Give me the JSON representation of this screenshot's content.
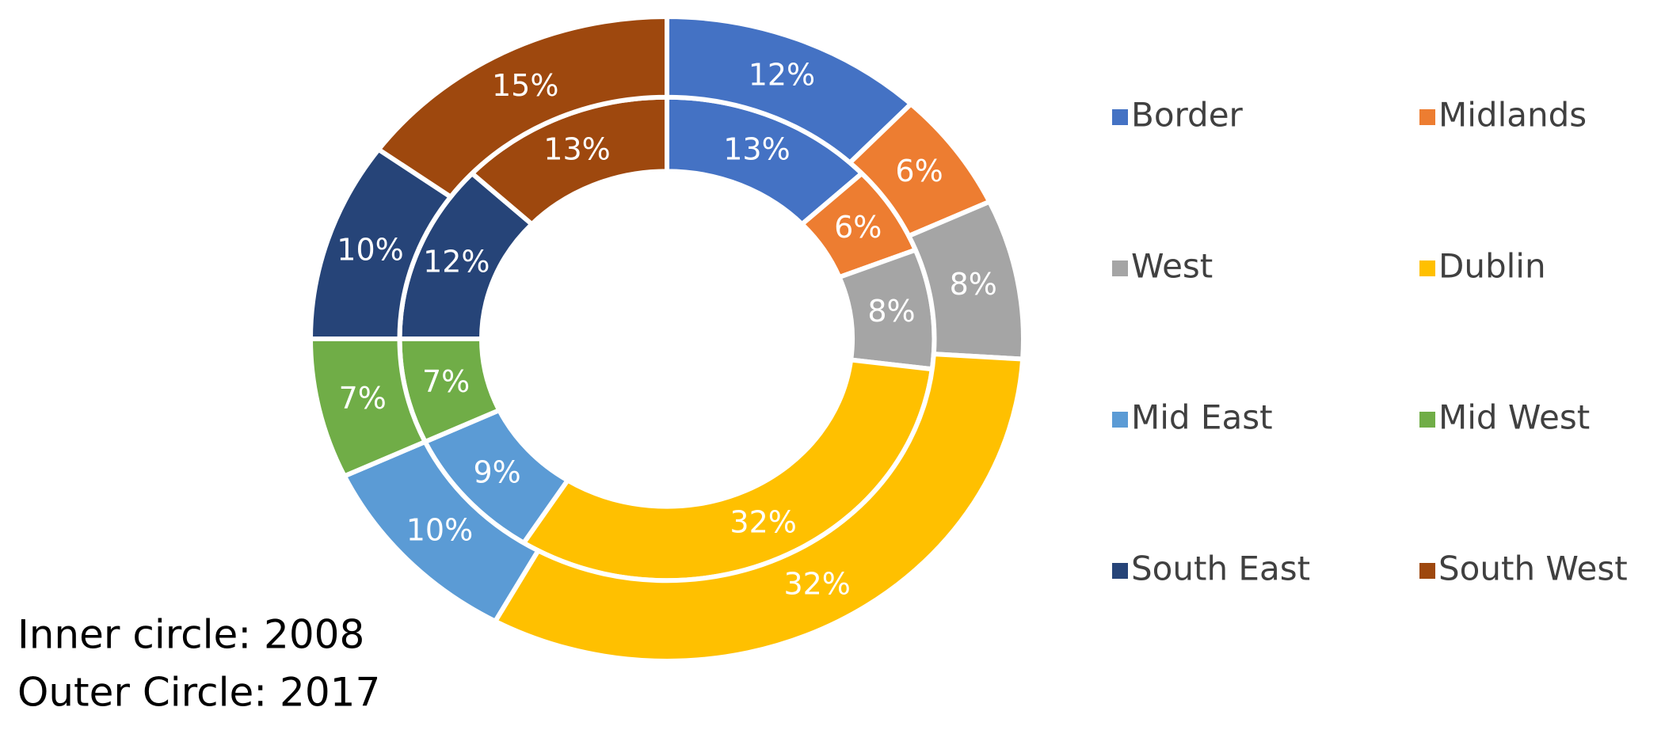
{
  "chart_data": {
    "type": "doughnut",
    "categories": [
      "Border",
      "Midlands",
      "West",
      "Dublin",
      "Mid East",
      "Mid West",
      "South East",
      "South West"
    ],
    "colors": [
      "#4472c4",
      "#ed7d31",
      "#a5a5a5",
      "#ffc000",
      "#5b9bd5",
      "#70ad47",
      "#264478",
      "#9e480e"
    ],
    "series": [
      {
        "ring": "inner",
        "values": [
          13,
          6,
          8,
          32,
          9,
          7,
          12,
          13
        ],
        "value_labels": [
          "13%",
          "6%",
          "8%",
          "32%",
          "9%",
          "7%",
          "12%",
          "13%"
        ]
      },
      {
        "ring": "outer",
        "values": [
          12,
          6,
          8,
          32,
          10,
          7,
          10,
          15
        ],
        "value_labels": [
          "12%",
          "6%",
          "8%",
          "32%",
          "10%",
          "7%",
          "10%",
          "15%"
        ]
      }
    ],
    "annotations": [
      "Inner circle: 2008",
      "Outer Circle: 2017"
    ],
    "legend": "right"
  }
}
